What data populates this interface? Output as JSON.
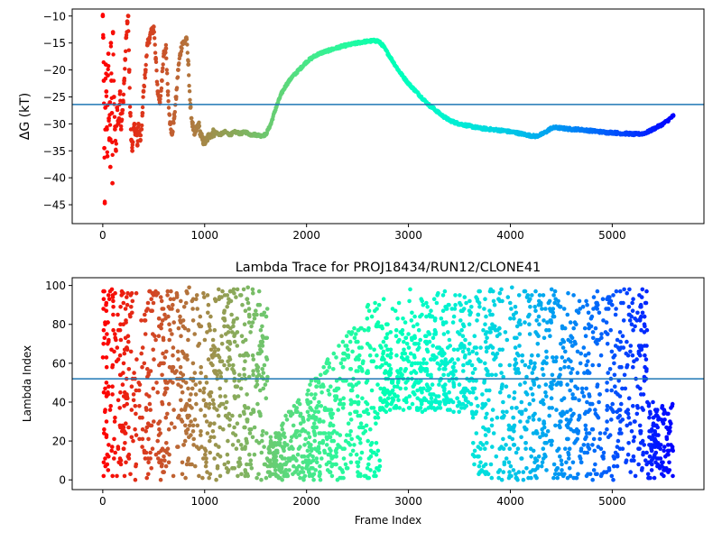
{
  "chart_data": [
    {
      "type": "scatter",
      "title": "",
      "xlabel": "",
      "ylabel": "ΔG (kT)",
      "xlim": [
        -300,
        5900
      ],
      "ylim": [
        -48.5,
        -8.7
      ],
      "xticks": [
        0,
        1000,
        2000,
        3000,
        4000,
        5000
      ],
      "xtick_labels": [
        "0",
        "1000",
        "2000",
        "3000",
        "4000",
        "5000"
      ],
      "yticks": [
        -45,
        -40,
        -35,
        -30,
        -25,
        -20,
        -15,
        -10
      ],
      "ytick_labels": [
        "−45",
        "−40",
        "−35",
        "−30",
        "−25",
        "−20",
        "−15",
        "−10"
      ],
      "hline": -26.4,
      "hline_color": "#1f77b4",
      "colormap": "rainbow (red at frame 0 → violet at last frame)",
      "grid": false,
      "series": [
        {
          "x": [
            0,
            5,
            10,
            15,
            20,
            25,
            30,
            35,
            40,
            45,
            50,
            55,
            60,
            65,
            70,
            75,
            80,
            85,
            90,
            95,
            100,
            110,
            120,
            130,
            140,
            150,
            160,
            170,
            180,
            190,
            200,
            210,
            220,
            230,
            240,
            250,
            260,
            270,
            280,
            290,
            300,
            310,
            320,
            330,
            340,
            350,
            360,
            370,
            380,
            390,
            400,
            420,
            440,
            460,
            480,
            500,
            520,
            540,
            560,
            580,
            600,
            620,
            640,
            660,
            680,
            700,
            720,
            740,
            760,
            780,
            800,
            820,
            840,
            860,
            880,
            900,
            920,
            940,
            960,
            980,
            1000,
            1050,
            1100,
            1150,
            1200,
            1250,
            1300,
            1350,
            1400,
            1450,
            1500,
            1550,
            1600,
            1650,
            1700,
            1750,
            1800,
            1850,
            1900,
            1950,
            2000,
            2050,
            2100,
            2150,
            2200,
            2250,
            2300,
            2350,
            2400,
            2450,
            2500,
            2550,
            2600,
            2650,
            2700,
            2750,
            2800,
            2850,
            2900,
            2950,
            3000,
            3050,
            3100,
            3150,
            3200,
            3250,
            3300,
            3350,
            3400,
            3450,
            3500,
            3550,
            3600,
            3650,
            3700,
            3750,
            3800,
            3850,
            3900,
            3950,
            4000,
            4050,
            4100,
            4150,
            4200,
            4250,
            4300,
            4350,
            4400,
            4450,
            4500,
            4550,
            4600,
            4650,
            4700,
            4750,
            4800,
            4850,
            4900,
            4950,
            5000,
            5050,
            5100,
            5150,
            5200,
            5250,
            5300,
            5350,
            5400,
            5450,
            5500,
            5550,
            5600
          ],
          "y": [
            -10,
            -14,
            -22,
            -34.5,
            -44.7,
            -27,
            -19,
            -24,
            -31,
            -36,
            -21,
            -17,
            -29,
            -33,
            -26,
            -38,
            -15,
            -22,
            -28,
            -41,
            -13,
            -25,
            -31,
            -35,
            -27,
            -30,
            -29,
            -24,
            -31,
            -28,
            -26,
            -22,
            -18,
            -14,
            -11,
            -10,
            -20,
            -28,
            -33,
            -35,
            -31,
            -30,
            -32,
            -31,
            -34,
            -30,
            -32,
            -33,
            -31,
            -28,
            -24,
            -20,
            -15,
            -14,
            -13,
            -12,
            -18,
            -24,
            -26,
            -22,
            -17,
            -16,
            -24,
            -30,
            -32,
            -29,
            -25,
            -20,
            -17,
            -15,
            -15,
            -14,
            -19,
            -27,
            -30,
            -32,
            -31,
            -30,
            -32,
            -33,
            -33.5,
            -32,
            -31.5,
            -32,
            -31.5,
            -32,
            -31.5,
            -31.8,
            -31.5,
            -32,
            -32,
            -32.2,
            -32,
            -30,
            -27,
            -24.5,
            -22.8,
            -21.5,
            -20.5,
            -19.5,
            -18.5,
            -17.8,
            -17.2,
            -16.8,
            -16.5,
            -16.2,
            -15.9,
            -15.6,
            -15.4,
            -15.2,
            -15,
            -14.8,
            -14.7,
            -14.6,
            -14.6,
            -15.5,
            -17,
            -18.5,
            -20,
            -21.3,
            -22.5,
            -23.5,
            -24.5,
            -25.5,
            -26.5,
            -27.2,
            -28,
            -28.7,
            -29.3,
            -29.7,
            -30,
            -30.2,
            -30.4,
            -30.6,
            -30.8,
            -30.9,
            -31,
            -31.1,
            -31.2,
            -31.3,
            -31.5,
            -31.6,
            -31.8,
            -32,
            -32.2,
            -32.3,
            -32,
            -31.5,
            -30.8,
            -30.7,
            -30.8,
            -30.9,
            -31,
            -31,
            -31.1,
            -31.2,
            -31.3,
            -31.4,
            -31.5,
            -31.6,
            -31.6,
            -31.7,
            -31.8,
            -31.8,
            -31.9,
            -31.9,
            -31.8,
            -31.5,
            -31,
            -30.5,
            -30,
            -29.3,
            -28.5
          ]
        }
      ]
    },
    {
      "type": "scatter",
      "title": "Lambda Trace for PROJ18434/RUN12/CLONE41",
      "xlabel": "Frame Index",
      "ylabel": "Lambda Index",
      "xlim": [
        -300,
        5900
      ],
      "ylim": [
        -5,
        104
      ],
      "xticks": [
        0,
        1000,
        2000,
        3000,
        4000,
        5000
      ],
      "xtick_labels": [
        "0",
        "1000",
        "2000",
        "3000",
        "4000",
        "5000"
      ],
      "yticks": [
        0,
        20,
        40,
        60,
        80,
        100
      ],
      "ytick_labels": [
        "0",
        "20",
        "40",
        "60",
        "80",
        "100"
      ],
      "hline": 52,
      "hline_color": "#1f77b4",
      "colormap": "rainbow (red at frame 0 → violet at last frame)",
      "grid": false,
      "density_bands": [
        {
          "x_range": [
            0,
            30
          ],
          "lambda_range": [
            0,
            98
          ]
        },
        {
          "x_range": [
            30,
            1620
          ],
          "lambda_range": [
            0,
            99
          ]
        },
        {
          "x_range": [
            1620,
            2100
          ],
          "lambda_range": [
            0,
            55
          ]
        },
        {
          "x_range": [
            2100,
            2720
          ],
          "lambda_range": [
            0,
            98
          ]
        },
        {
          "x_range": [
            2720,
            3600
          ],
          "lambda_range": [
            35,
            99
          ]
        },
        {
          "x_range": [
            3600,
            4250
          ],
          "lambda_range": [
            0,
            99
          ]
        },
        {
          "x_range": [
            4250,
            5350
          ],
          "lambda_range": [
            0,
            99
          ]
        },
        {
          "x_range": [
            5350,
            5600
          ],
          "lambda_range": [
            0,
            40
          ]
        }
      ]
    }
  ]
}
